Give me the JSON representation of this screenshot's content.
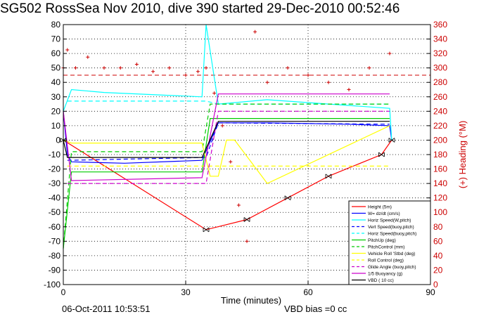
{
  "chart_data": {
    "type": "line",
    "title": "SG502 RossSea Nov 2010, dive 390 started 29-Dec-2010 00:52:46",
    "xlabel": "Time (minutes)",
    "ylabel_right": "(+) Heading (°M)",
    "xlim": [
      0,
      90
    ],
    "ylim": [
      -100,
      80
    ],
    "ylim_right": [
      0,
      360
    ],
    "x_ticks": [
      "0",
      "30",
      "60",
      "90"
    ],
    "y_ticks": [
      "80",
      "70",
      "60",
      "50",
      "40",
      "30",
      "20",
      "10",
      "0",
      "-10",
      "-20",
      "-30",
      "-40",
      "-50",
      "-60",
      "-70",
      "-80",
      "-90",
      "-100"
    ],
    "y_ticks_right": [
      "360",
      "340",
      "320",
      "300",
      "280",
      "260",
      "240",
      "220",
      "200",
      "180",
      "160",
      "140",
      "120",
      "100",
      "80",
      "60",
      "40",
      "20",
      "0"
    ],
    "grid": true,
    "legend_position": "lower-right",
    "footer_date": "06-Oct-2011 10:53:51",
    "footer_note": "VBD bias =0 cc",
    "series": [
      {
        "name": "Height (5m)",
        "color": "#ff0000",
        "style": "solid",
        "x": [
          0,
          35,
          45,
          55,
          65,
          78,
          80.5
        ],
        "y": [
          0,
          -62,
          -55,
          -40,
          -25,
          -10,
          0
        ]
      },
      {
        "name": "W= dz/dt (cm/s)",
        "color": "#0000ff",
        "style": "solid",
        "x": [
          0,
          1,
          2,
          15,
          34,
          38,
          50,
          70,
          80,
          80.5
        ],
        "y": [
          20,
          -10,
          -15,
          -16,
          -14,
          12,
          12,
          11,
          10,
          0
        ]
      },
      {
        "name": "Horiz Speed(W,pitch)",
        "color": "#00ffff",
        "style": "solid",
        "x": [
          0,
          2,
          10,
          34,
          35,
          38,
          50,
          70,
          80,
          80.5
        ],
        "y": [
          20,
          35,
          33,
          30,
          80,
          25,
          28,
          24,
          22,
          0
        ]
      },
      {
        "name": "Vert Speed(buoy,pitch)",
        "color": "#0000ff",
        "style": "dashed",
        "x": [
          1,
          35,
          38,
          80
        ],
        "y": [
          -14,
          -12,
          12,
          11
        ]
      },
      {
        "name": "Horiz Speed(buoy,pitch)",
        "color": "#00ffff",
        "style": "dashed",
        "x": [
          1,
          35,
          38,
          80
        ],
        "y": [
          27,
          27,
          25,
          25
        ]
      },
      {
        "name": "PitchUp (deg)",
        "color": "#00cc00",
        "style": "solid",
        "x": [
          0,
          2,
          34,
          36,
          80
        ],
        "y": [
          -75,
          -22,
          -22,
          15,
          15
        ]
      },
      {
        "name": "PitchControl (mm)",
        "color": "#00cc00",
        "style": "dashed",
        "x": [
          0,
          2,
          34,
          36,
          80
        ],
        "y": [
          -75,
          -8,
          -8,
          25,
          25
        ]
      },
      {
        "name": "Vehicle Roll 'Stbd (deg)",
        "color": "#ffff00",
        "style": "solid",
        "x": [
          0,
          2,
          34,
          36,
          38,
          40,
          42,
          50,
          80
        ],
        "y": [
          0,
          -2,
          -2,
          -25,
          -25,
          0,
          0,
          -30,
          10
        ]
      },
      {
        "name": "Roll Control (deg)",
        "color": "#ffff00",
        "style": "dashed",
        "x": [
          1,
          80
        ],
        "y": [
          -18,
          -18
        ]
      },
      {
        "name": "Glide Angle (buoy,pitch)",
        "color": "#cc00cc",
        "style": "dashed",
        "x": [
          1,
          35,
          38,
          80
        ],
        "y": [
          -30,
          -30,
          20,
          20
        ]
      },
      {
        "name": "1/5 Buoyancy (g)",
        "color": "#cc00cc",
        "style": "solid",
        "x": [
          0,
          2,
          34,
          38,
          80
        ],
        "y": [
          20,
          -28,
          -26,
          32,
          32
        ]
      },
      {
        "name": "VBD ( 10 cc)",
        "color": "#000000",
        "style": "solid",
        "x": [
          0,
          1,
          34,
          38,
          80
        ],
        "y": [
          0,
          -12,
          -12,
          13,
          13
        ]
      }
    ],
    "heading_series": {
      "name": "Heading",
      "axis": "right",
      "color": "#cc0000",
      "marker": "+",
      "x": [
        0,
        1,
        3,
        6,
        10,
        14,
        18,
        22,
        26,
        30,
        33,
        35,
        37,
        39,
        41,
        43,
        45,
        47,
        50,
        55,
        60,
        65,
        70,
        75,
        80
      ],
      "y": [
        300,
        325,
        300,
        315,
        300,
        300,
        305,
        295,
        300,
        290,
        295,
        300,
        265,
        220,
        170,
        110,
        60,
        350,
        280,
        300,
        290,
        280,
        270,
        300,
        320
      ]
    },
    "heading_dashed_level": 290
  }
}
